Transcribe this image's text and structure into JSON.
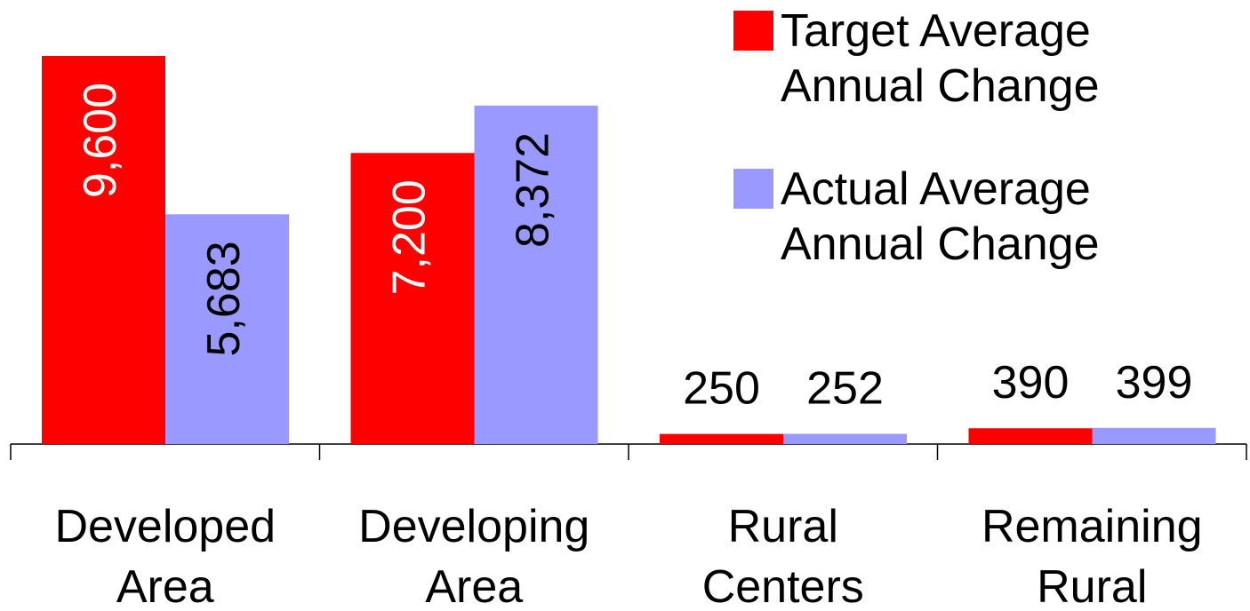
{
  "chart_data": {
    "type": "bar",
    "categories": [
      [
        "Developed",
        "Area"
      ],
      [
        "Developing",
        "Area"
      ],
      [
        "Rural",
        "Centers"
      ],
      [
        "Remaining",
        "Rural"
      ]
    ],
    "series": [
      {
        "name": [
          "Target Average",
          "Annual Change"
        ],
        "color": "#ff0000",
        "label_color": "#ffffff",
        "values": [
          9600,
          7200,
          250,
          390
        ],
        "value_labels": [
          "9,600",
          "7,200",
          "250",
          "390"
        ]
      },
      {
        "name": [
          "Actual Average",
          "Annual Change"
        ],
        "color": "#9999ff",
        "label_color": "#000000",
        "values": [
          5683,
          8372,
          252,
          399
        ],
        "value_labels": [
          "5,683",
          "8,372",
          "252",
          "399"
        ]
      }
    ],
    "legend": "top-right"
  }
}
